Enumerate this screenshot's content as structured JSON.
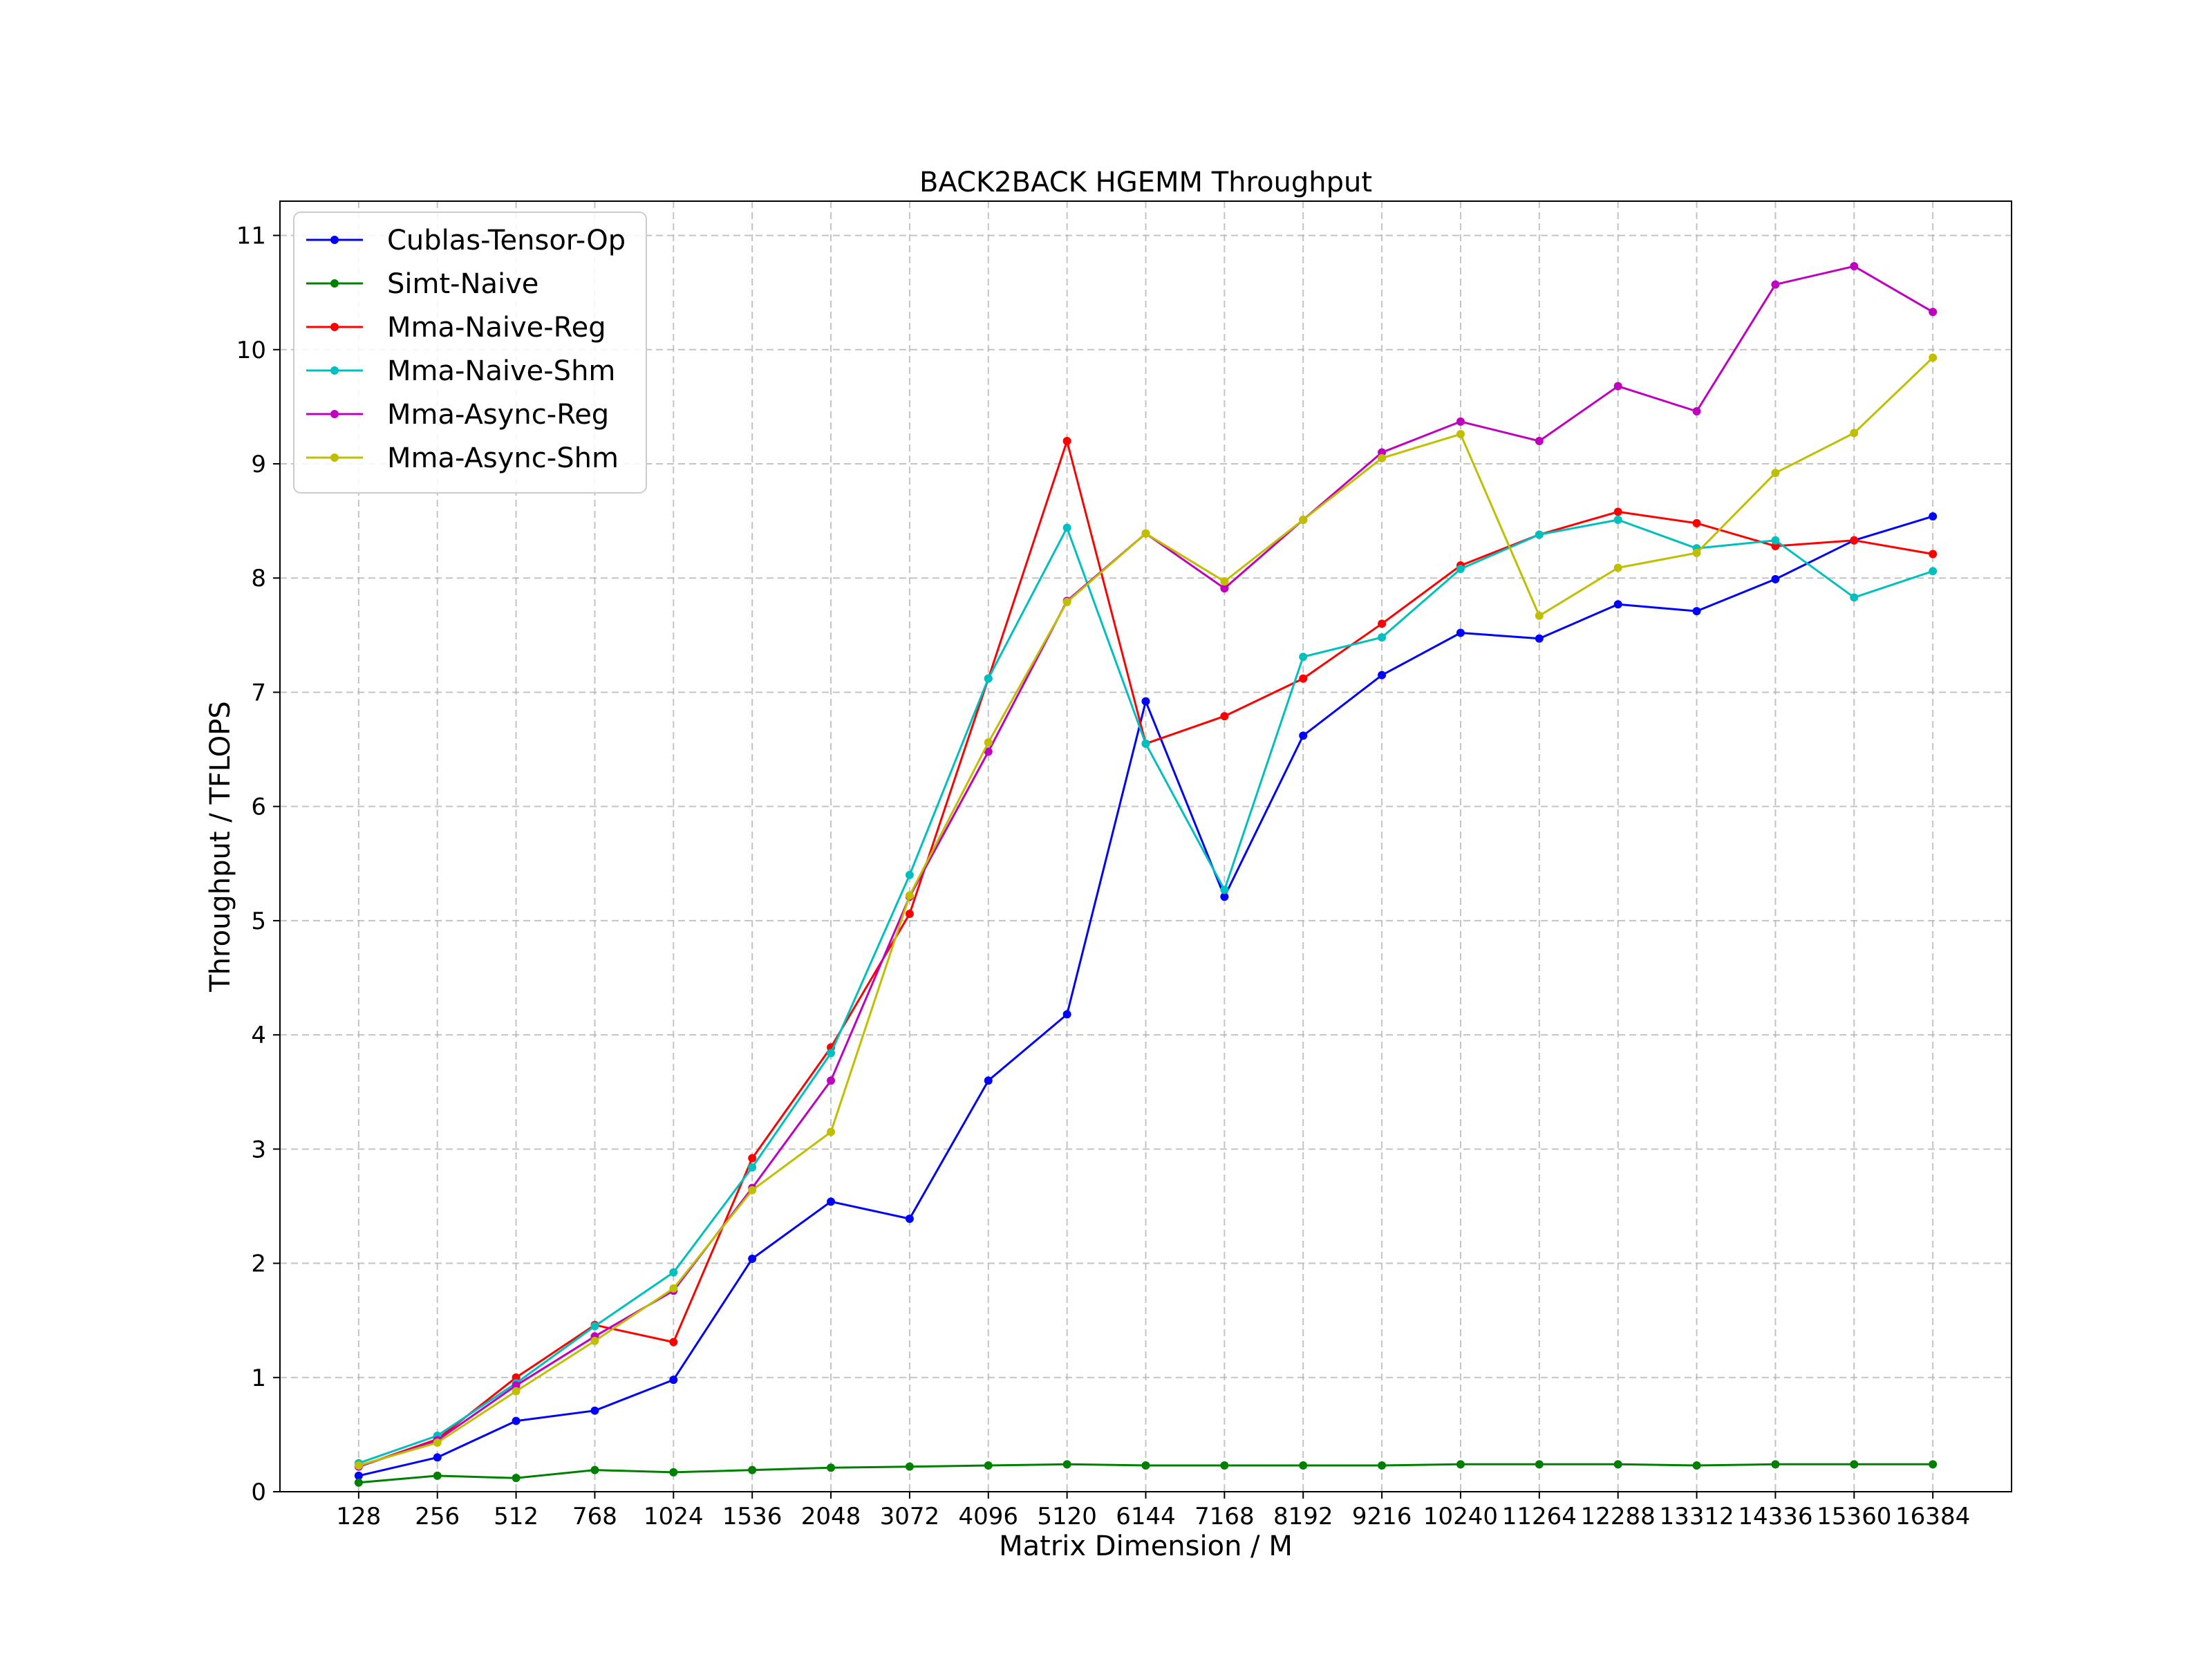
{
  "chart_data": {
    "type": "line",
    "title": "BACK2BACK HGEMM Throughput",
    "xlabel": "Matrix Dimension / M",
    "ylabel": "Throughput / TFLOPS",
    "categories": [
      "128",
      "256",
      "512",
      "768",
      "1024",
      "1536",
      "2048",
      "3072",
      "4096",
      "5120",
      "6144",
      "7168",
      "8192",
      "9216",
      "10240",
      "11264",
      "12288",
      "13312",
      "14336",
      "15360",
      "16384"
    ],
    "ylim": [
      0,
      11.3
    ],
    "yticks": [
      0,
      1,
      2,
      3,
      4,
      5,
      6,
      7,
      8,
      9,
      10,
      11
    ],
    "grid": true,
    "legend_position": "top-left",
    "series": [
      {
        "name": "Cublas-Tensor-Op",
        "color": "#0000ff",
        "values": [
          0.14,
          0.3,
          0.62,
          0.71,
          0.98,
          2.04,
          2.54,
          2.39,
          3.6,
          4.18,
          6.92,
          5.21,
          6.62,
          7.15,
          7.52,
          7.47,
          7.77,
          7.71,
          7.99,
          8.33,
          8.54
        ]
      },
      {
        "name": "Simt-Naive",
        "color": "#008000",
        "values": [
          0.08,
          0.14,
          0.12,
          0.19,
          0.17,
          0.19,
          0.21,
          0.22,
          0.23,
          0.24,
          0.23,
          0.23,
          0.23,
          0.23,
          0.24,
          0.24,
          0.24,
          0.23,
          0.24,
          0.24,
          0.24
        ]
      },
      {
        "name": "Mma-Naive-Reg",
        "color": "#ff0000",
        "values": [
          0.22,
          0.46,
          1.0,
          1.46,
          1.31,
          2.92,
          3.89,
          5.06,
          7.12,
          9.2,
          6.55,
          6.79,
          7.12,
          7.6,
          8.11,
          8.38,
          8.58,
          8.48,
          8.28,
          8.33,
          8.21
        ]
      },
      {
        "name": "Mma-Naive-Shm",
        "color": "#00bfbf",
        "values": [
          0.25,
          0.49,
          0.95,
          1.45,
          1.92,
          2.84,
          3.84,
          5.4,
          7.12,
          8.44,
          6.55,
          5.27,
          7.31,
          7.48,
          8.08,
          8.38,
          8.51,
          8.26,
          8.33,
          7.83,
          8.06
        ]
      },
      {
        "name": "Mma-Async-Reg",
        "color": "#bf00bf",
        "values": [
          0.22,
          0.45,
          0.93,
          1.36,
          1.76,
          2.66,
          3.6,
          5.21,
          6.48,
          7.8,
          8.39,
          7.91,
          8.51,
          9.1,
          9.37,
          9.2,
          9.68,
          9.46,
          10.57,
          10.73,
          10.33
        ]
      },
      {
        "name": "Mma-Async-Shm",
        "color": "#bfbf00",
        "values": [
          0.23,
          0.43,
          0.88,
          1.32,
          1.78,
          2.64,
          3.15,
          5.22,
          6.56,
          7.79,
          8.39,
          7.97,
          8.51,
          9.05,
          9.26,
          7.67,
          8.09,
          8.22,
          8.92,
          9.27,
          9.93
        ]
      }
    ]
  }
}
